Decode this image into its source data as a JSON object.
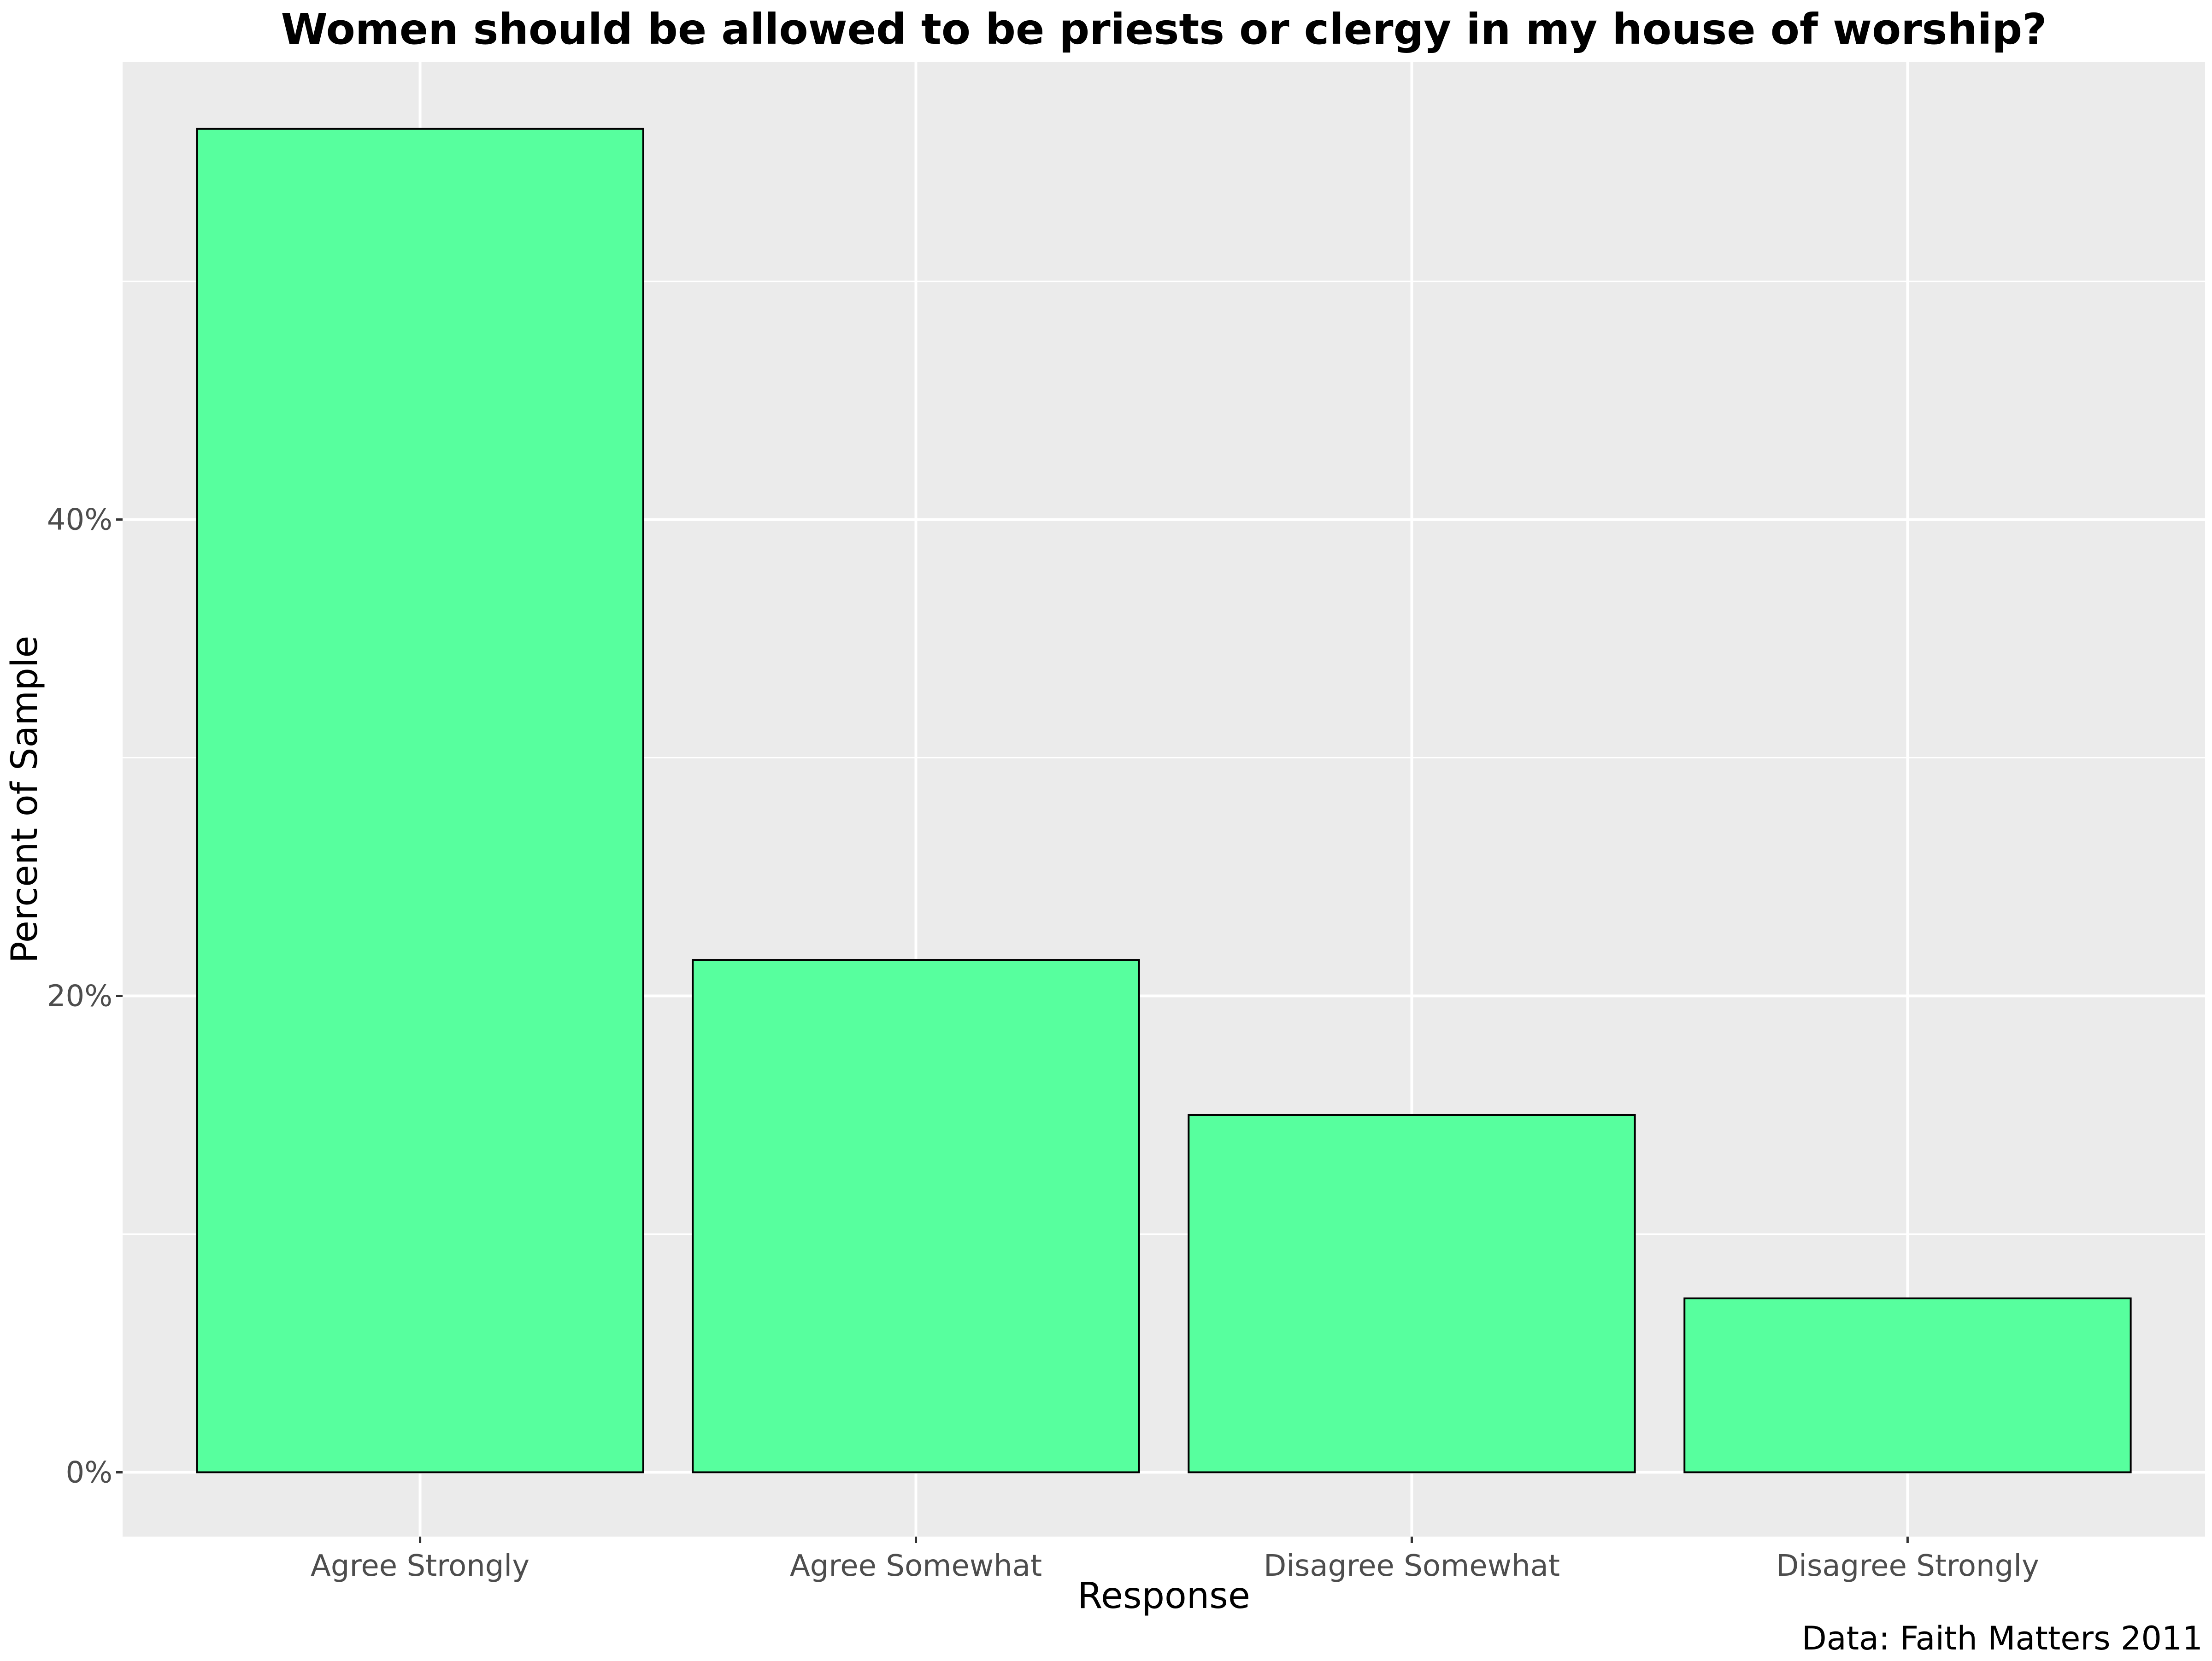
{
  "chart_data": {
    "type": "bar",
    "title": "Women should be allowed to be priests or clergy in my house of worship?",
    "xlabel": "Response",
    "ylabel": "Percent of Sample",
    "caption": "Data: Faith Matters 2011",
    "categories": [
      "Agree Strongly",
      "Agree Somewhat",
      "Disagree Somewhat",
      "Disagree Strongly"
    ],
    "values": [
      56.4,
      21.5,
      15.0,
      7.3
    ],
    "ylim": [
      -2.7,
      59.2
    ],
    "yticks": [
      0,
      20,
      40
    ],
    "ytick_labels": [
      "0%",
      "20%",
      "40%"
    ],
    "grid": true,
    "legend": "none",
    "colors": {
      "bar_fill": "#57FF9E",
      "bar_stroke": "#000000",
      "panel_bg": "#EBEBEB",
      "grid": "#FFFFFF"
    }
  }
}
